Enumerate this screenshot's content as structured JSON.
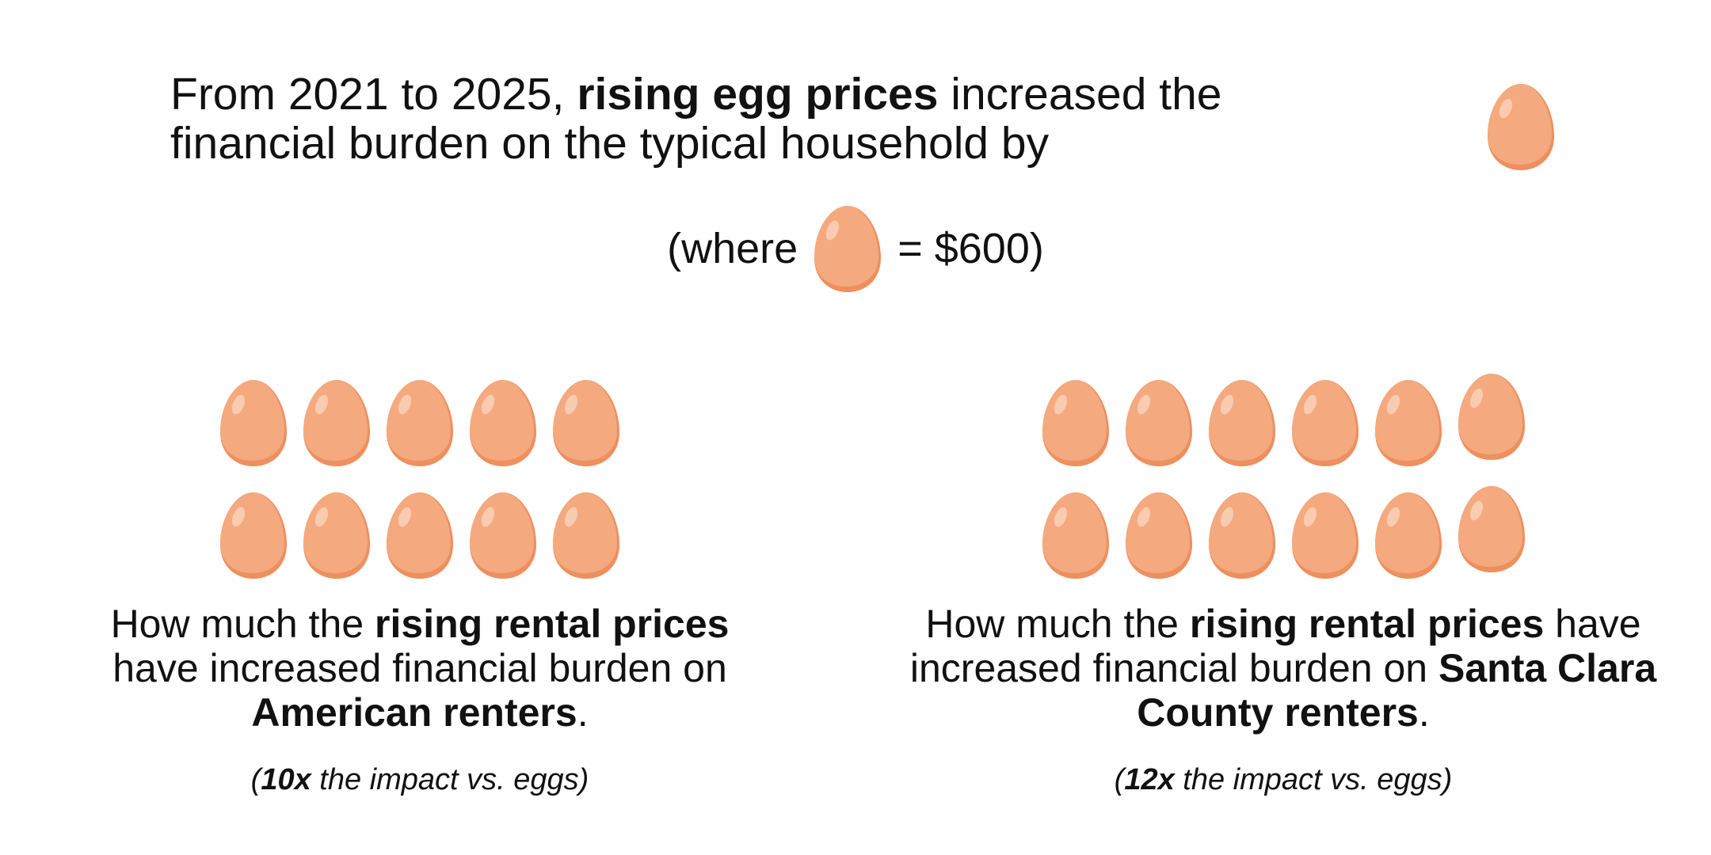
{
  "headline": {
    "part1": "From 2021 to 2025, ",
    "bold": "rising egg prices",
    "part2": " increased the financial burden on the typical household by"
  },
  "legend": {
    "prefix": "(where",
    "suffix": "= $600)"
  },
  "colors": {
    "egg_fill": "#F4A97F",
    "egg_shadow": "#EE8F5E",
    "egg_highlight": "#F9CBB0"
  },
  "left_group": {
    "egg_count": 10,
    "caption_part1": "How much the ",
    "caption_bold1": "rising rental prices",
    "caption_part2": " have increased financial burden on ",
    "caption_bold2": "American renters",
    "caption_part3": ".",
    "note_open": "(",
    "note_multiplier": "10x",
    "note_text": " the impact vs. eggs)"
  },
  "right_group": {
    "egg_count": 12,
    "caption_part1": "How much the ",
    "caption_bold1": "rising rental prices",
    "caption_part2": " have increased financial burden on ",
    "caption_bold2": "Santa Clara County renters",
    "caption_part3": ".",
    "note_open": "(",
    "note_multiplier": "12x",
    "note_text": " the impact vs. eggs)"
  },
  "icons": {
    "egg": "egg-icon"
  }
}
